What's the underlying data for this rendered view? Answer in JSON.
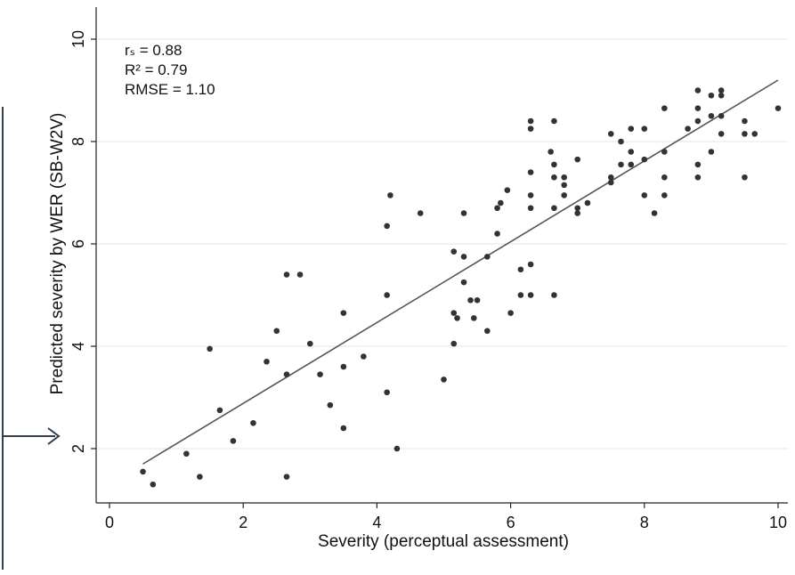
{
  "chart_data": {
    "type": "scatter",
    "title": "",
    "xlabel": "Severity (perceptual assessment)",
    "ylabel": "Predicted severity by WER (SB-W2V)",
    "xlim": [
      -0.3,
      10.2
    ],
    "ylim": [
      1,
      10.3
    ],
    "xticks": [
      0,
      2,
      4,
      6,
      8,
      10
    ],
    "yticks": [
      2,
      4,
      6,
      8,
      10
    ],
    "grid": true,
    "annotations": [
      "rₛ = 0.88",
      "R² = 0.79",
      "RMSE = 1.10"
    ],
    "fit_line": {
      "x": [
        0.5,
        10
      ],
      "y": [
        1.7,
        9.2
      ]
    },
    "points": [
      [
        0.5,
        1.55
      ],
      [
        0.65,
        1.3
      ],
      [
        1.15,
        1.9
      ],
      [
        1.35,
        1.45
      ],
      [
        1.5,
        3.95
      ],
      [
        1.65,
        2.75
      ],
      [
        1.85,
        2.15
      ],
      [
        2.15,
        2.5
      ],
      [
        2.35,
        3.7
      ],
      [
        2.5,
        4.3
      ],
      [
        2.65,
        5.4
      ],
      [
        2.65,
        3.45
      ],
      [
        2.65,
        1.45
      ],
      [
        2.85,
        5.4
      ],
      [
        3.0,
        4.05
      ],
      [
        3.15,
        3.45
      ],
      [
        3.3,
        2.85
      ],
      [
        3.5,
        4.65
      ],
      [
        3.5,
        3.6
      ],
      [
        3.5,
        2.4
      ],
      [
        3.8,
        3.8
      ],
      [
        4.15,
        6.35
      ],
      [
        4.15,
        5.0
      ],
      [
        4.15,
        3.1
      ],
      [
        4.2,
        6.95
      ],
      [
        4.3,
        2.0
      ],
      [
        4.65,
        6.6
      ],
      [
        5.0,
        3.35
      ],
      [
        5.15,
        5.85
      ],
      [
        5.15,
        4.65
      ],
      [
        5.15,
        4.05
      ],
      [
        5.2,
        4.55
      ],
      [
        5.3,
        6.6
      ],
      [
        5.3,
        5.75
      ],
      [
        5.3,
        5.25
      ],
      [
        5.4,
        4.9
      ],
      [
        5.45,
        4.55
      ],
      [
        5.5,
        4.9
      ],
      [
        5.65,
        5.75
      ],
      [
        5.65,
        4.3
      ],
      [
        5.8,
        6.7
      ],
      [
        5.8,
        6.2
      ],
      [
        5.85,
        6.8
      ],
      [
        5.95,
        7.05
      ],
      [
        6.0,
        4.65
      ],
      [
        6.15,
        5.5
      ],
      [
        6.15,
        5.0
      ],
      [
        6.3,
        8.4
      ],
      [
        6.3,
        8.25
      ],
      [
        6.3,
        7.4
      ],
      [
        6.3,
        6.95
      ],
      [
        6.3,
        6.7
      ],
      [
        6.3,
        5.6
      ],
      [
        6.3,
        5.0
      ],
      [
        6.6,
        7.8
      ],
      [
        6.65,
        8.4
      ],
      [
        6.65,
        7.55
      ],
      [
        6.65,
        7.3
      ],
      [
        6.65,
        6.7
      ],
      [
        6.65,
        5.0
      ],
      [
        6.8,
        7.3
      ],
      [
        6.8,
        7.15
      ],
      [
        6.8,
        6.95
      ],
      [
        7.0,
        7.65
      ],
      [
        7.0,
        6.7
      ],
      [
        7.0,
        6.6
      ],
      [
        7.15,
        6.8
      ],
      [
        7.5,
        8.15
      ],
      [
        7.5,
        7.3
      ],
      [
        7.5,
        7.2
      ],
      [
        7.65,
        8.0
      ],
      [
        7.65,
        7.55
      ],
      [
        7.8,
        8.25
      ],
      [
        7.8,
        7.8
      ],
      [
        7.8,
        7.55
      ],
      [
        8.0,
        8.25
      ],
      [
        8.0,
        7.65
      ],
      [
        8.0,
        6.95
      ],
      [
        8.15,
        6.6
      ],
      [
        8.3,
        8.65
      ],
      [
        8.3,
        7.8
      ],
      [
        8.3,
        7.3
      ],
      [
        8.3,
        6.95
      ],
      [
        8.65,
        8.25
      ],
      [
        8.8,
        9.0
      ],
      [
        8.8,
        8.65
      ],
      [
        8.8,
        8.4
      ],
      [
        8.8,
        7.55
      ],
      [
        8.8,
        7.3
      ],
      [
        9.0,
        8.9
      ],
      [
        9.0,
        8.5
      ],
      [
        9.0,
        7.8
      ],
      [
        9.15,
        9.0
      ],
      [
        9.15,
        8.9
      ],
      [
        9.15,
        8.5
      ],
      [
        9.15,
        8.15
      ],
      [
        9.5,
        8.4
      ],
      [
        9.5,
        8.15
      ],
      [
        9.5,
        7.3
      ],
      [
        9.65,
        8.15
      ],
      [
        10.0,
        8.65
      ]
    ]
  }
}
